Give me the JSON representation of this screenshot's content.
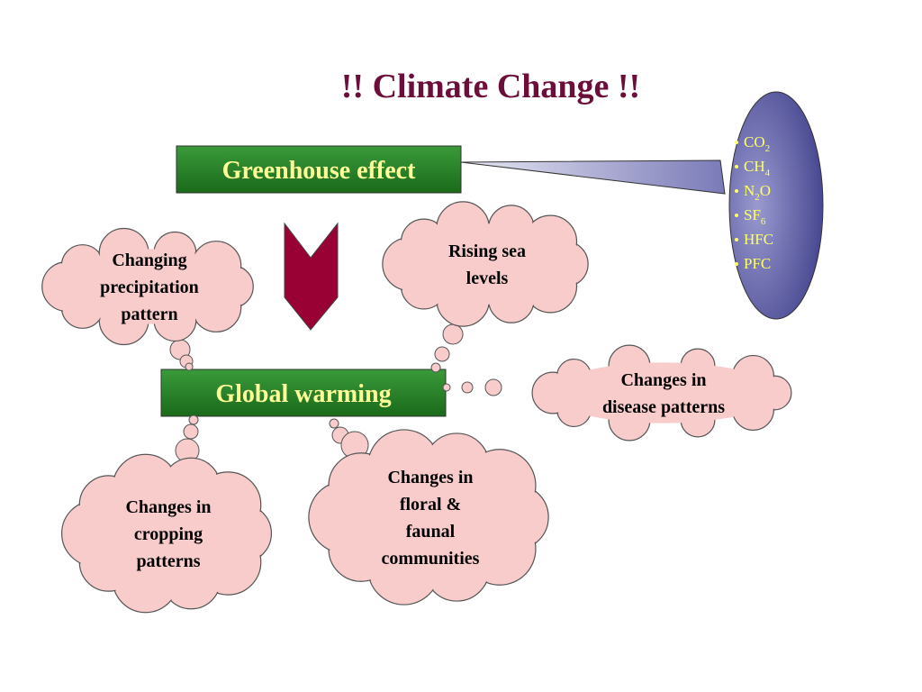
{
  "title": "!! Climate Change !!",
  "nodes": {
    "greenhouse": "Greenhouse effect",
    "warming": "Global warming",
    "gases": [
      [
        "CO",
        "2"
      ],
      [
        "CH",
        "4"
      ],
      [
        "N",
        "2",
        "O"
      ],
      [
        "SF",
        "6"
      ],
      [
        "HFC"
      ],
      [
        "PFC"
      ]
    ],
    "clouds": [
      [
        "Changing",
        "precipitation",
        "pattern"
      ],
      [
        "Rising sea",
        "levels"
      ],
      [
        "Changes in",
        "disease patterns"
      ],
      [
        "Changes in",
        "cropping",
        "patterns"
      ],
      [
        "Changes in",
        "floral &",
        "faunal",
        "communities"
      ]
    ]
  }
}
